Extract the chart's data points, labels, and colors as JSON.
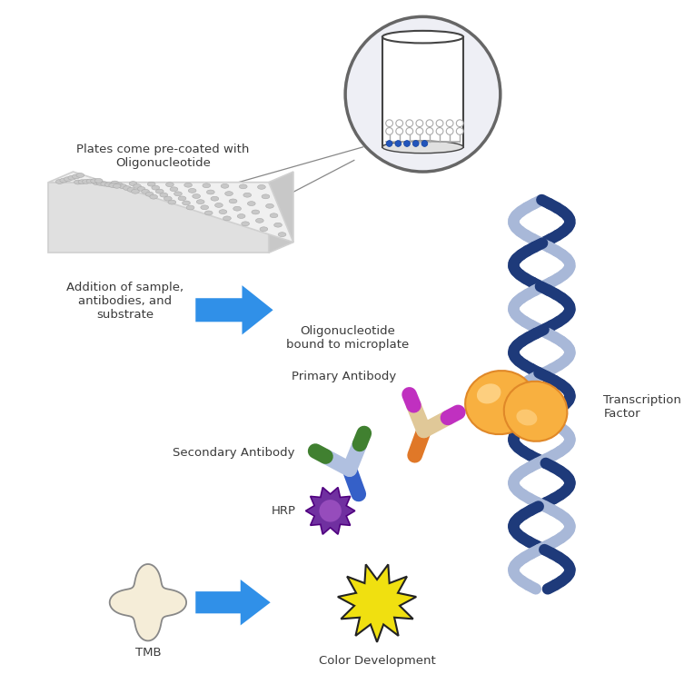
{
  "bg_color": "#ffffff",
  "text_color": "#3a3a3a",
  "labels": {
    "precoated": "Plates come pre-coated with\nOligonucleotide",
    "addition": "Addition of sample,\nantibodies, and\nsubstrate",
    "oligo_bound": "Oligonucleotide\nbound to microplate",
    "primary": "Primary Antibody",
    "secondary": "Secondary Antibody",
    "hrp": "HRP",
    "transcription": "Transcription\nFactor",
    "tmb": "TMB",
    "color_dev": "Color Development"
  },
  "dna_dark": "#1e3a7a",
  "dna_light": "#a8b8d8",
  "orange_hi": "#f8b040",
  "orange_lo": "#e08828",
  "orange_spec": "#ffd890",
  "arrow_color": "#3090e8",
  "arrow_dark": "#1060c0",
  "hrp_color1": "#7030a0",
  "hrp_color2": "#b060d0",
  "tmb_color": "#f5edd8",
  "tmb_edge": "#888888",
  "star_color": "#f0e010",
  "star_edge": "#222222",
  "plate_top": "#f0f0f0",
  "plate_side": "#d0d0d0",
  "plate_front": "#e0e0e0",
  "well_color": "#c8c8c8",
  "circle_bg": "#eeeff5",
  "circle_edge": "#666666",
  "cyl_edge": "#444444",
  "oligo_empty": "#aaaaaa",
  "oligo_filled": "#2255bb",
  "line_color": "#888888",
  "font_size": 9.5,
  "font_size_sm": 8.5
}
